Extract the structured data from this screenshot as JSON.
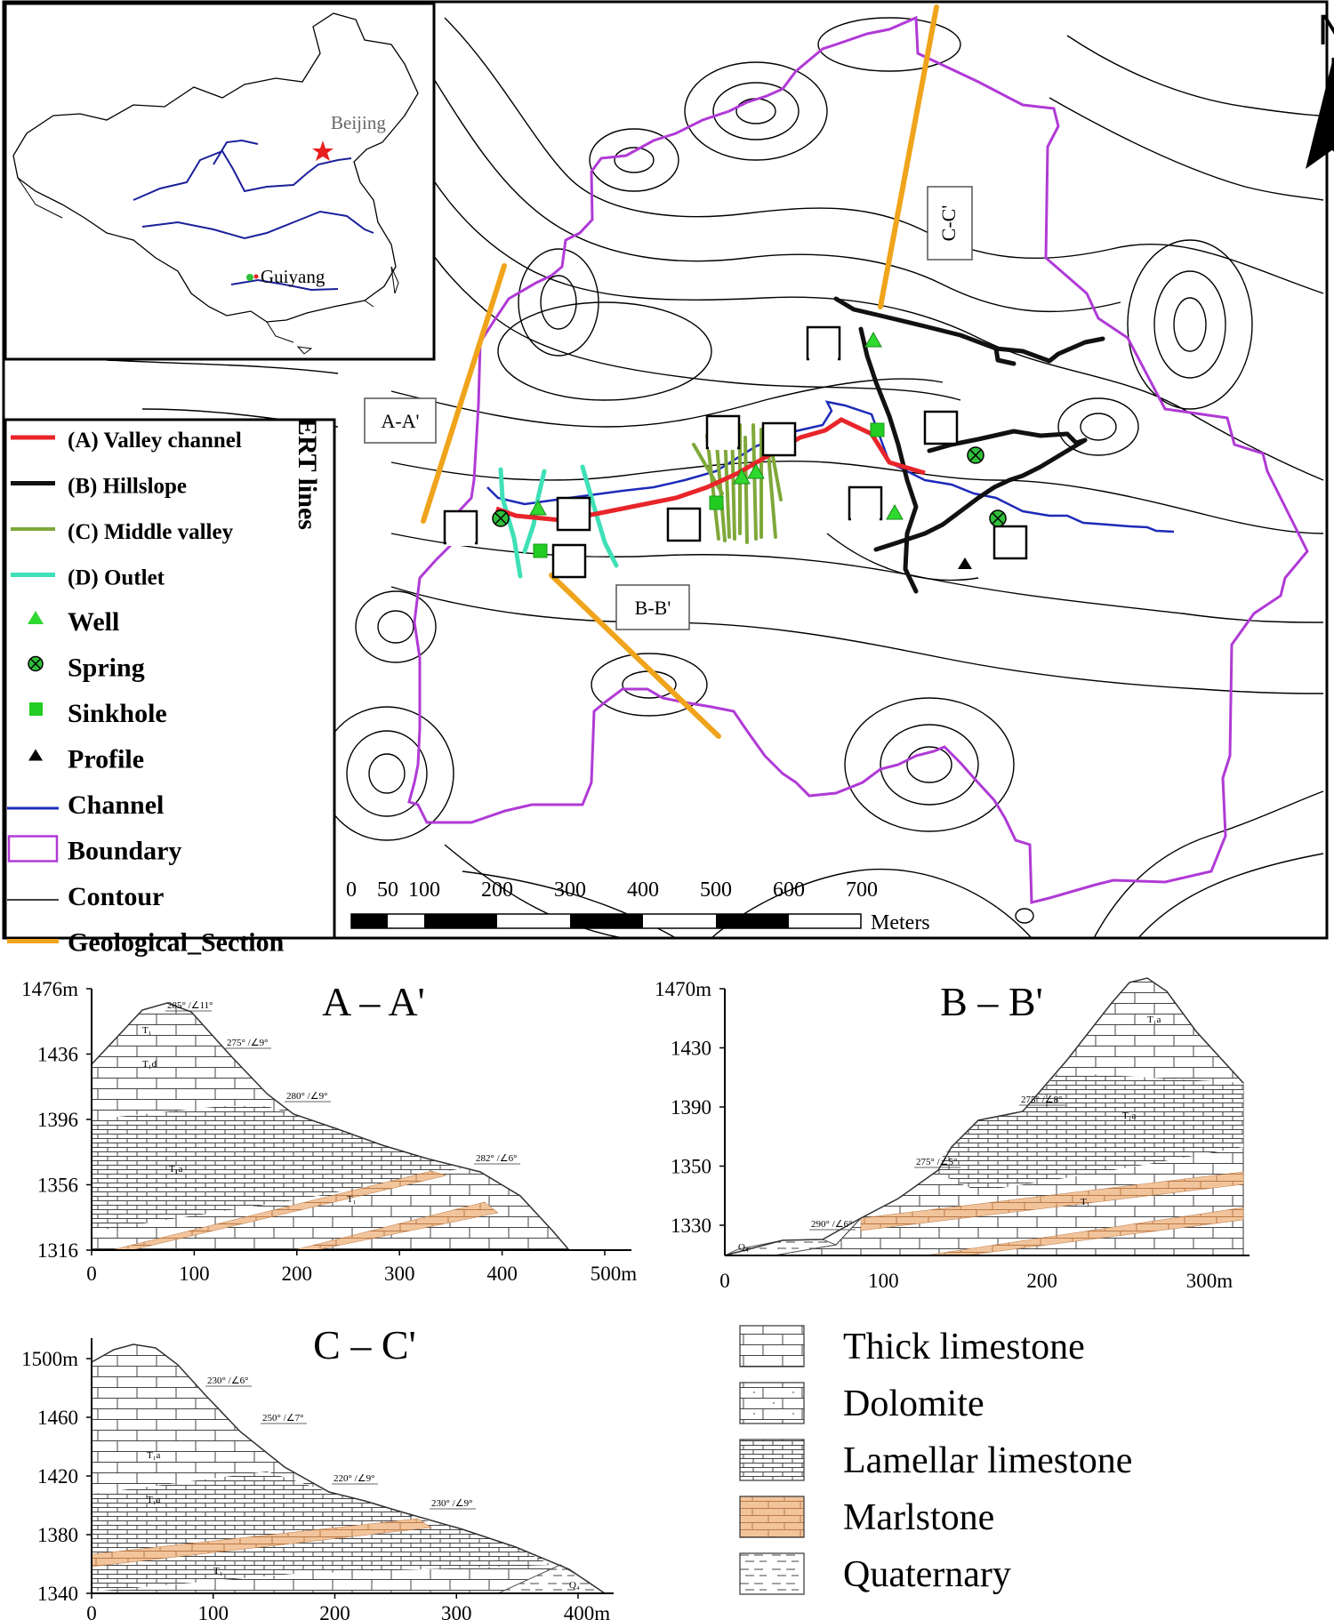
{
  "colors": {
    "valley_channel": "#e8252a",
    "hillslope": "#111111",
    "middle_valley": "#7fa83a",
    "outlet": "#3fe0b8",
    "well": "#2fd92f",
    "spring": "#2fbf3a",
    "sinkhole": "#22cc22",
    "channel": "#1c2bb8",
    "boundary": "#b03ad6",
    "contour": "#000000",
    "geo_section": "#f0a41c",
    "china_river": "#1a1f9a",
    "beijing_star": "#e82020",
    "marlstone": "#f2c49b"
  },
  "inset": {
    "beijing": "Beijing",
    "guiyang": "Guiyang"
  },
  "north": "N",
  "section_labels": {
    "a": "A-A'",
    "b": "B-B'",
    "c": "C-C'"
  },
  "ert_title": "ERT lines",
  "legend": {
    "items": [
      {
        "label": "(A) Valley channel",
        "icon": "red-line"
      },
      {
        "label": "(B) Hillslope",
        "icon": "black-line"
      },
      {
        "label": "(C) Middle valley",
        "icon": "green-line"
      },
      {
        "label": "(D) Outlet",
        "icon": "cyan-line"
      },
      {
        "label": "Well",
        "icon": "triangle-green"
      },
      {
        "label": "Spring",
        "icon": "spring-circle"
      },
      {
        "label": "Sinkhole",
        "icon": "square-green"
      },
      {
        "label": "Profile",
        "icon": "triangle-black"
      },
      {
        "label": "Channel",
        "icon": "blue-line"
      },
      {
        "label": "Boundary",
        "icon": "purple-rect"
      },
      {
        "label": "Contour",
        "icon": "thin-black-line"
      },
      {
        "label": "Geological_Section",
        "icon": "orange-line"
      }
    ]
  },
  "scale_bar": {
    "ticks": [
      "0",
      "50",
      "100",
      "200",
      "300",
      "400",
      "500",
      "600",
      "700"
    ],
    "unit": "Meters"
  },
  "sections": {
    "a": {
      "title": "A – A'",
      "y_ticks": [
        "1476m",
        "1436",
        "1396",
        "1356",
        "1316"
      ],
      "x_ticks": [
        "0",
        "100",
        "200",
        "300",
        "400",
        "500m"
      ],
      "dips": [
        "285° /∠11°",
        "275° /∠9°",
        "280° /∠9°",
        "282° /∠6°"
      ],
      "strata": [
        "T₁",
        "T₁d",
        "T₁a",
        "T₁"
      ]
    },
    "b": {
      "title": "B – B'",
      "y_ticks": [
        "1470m",
        "1430",
        "1390",
        "1350",
        "1330"
      ],
      "x_ticks": [
        "0",
        "100",
        "200",
        "300m"
      ],
      "dips": [
        "275° /∠8°",
        "275° /∠5°",
        "290° /∠6°"
      ],
      "strata": [
        "T₁a",
        "T₁a",
        "T₁",
        "Q₄"
      ]
    },
    "c": {
      "title": "C – C'",
      "y_ticks": [
        "1500m",
        "1460",
        "1420",
        "1380",
        "1340"
      ],
      "x_ticks": [
        "0",
        "100",
        "200",
        "300",
        "400m"
      ],
      "dips": [
        "230° /∠6°",
        "250° /∠7°",
        "220° /∠9°",
        "230° /∠9°"
      ],
      "strata": [
        "T₁a",
        "T₁a",
        "T₁",
        "Q₄"
      ]
    }
  },
  "lithology_legend": [
    "Thick limestone",
    "Dolomite",
    "Lamellar limestone",
    "Marlstone",
    "Quaternary"
  ]
}
